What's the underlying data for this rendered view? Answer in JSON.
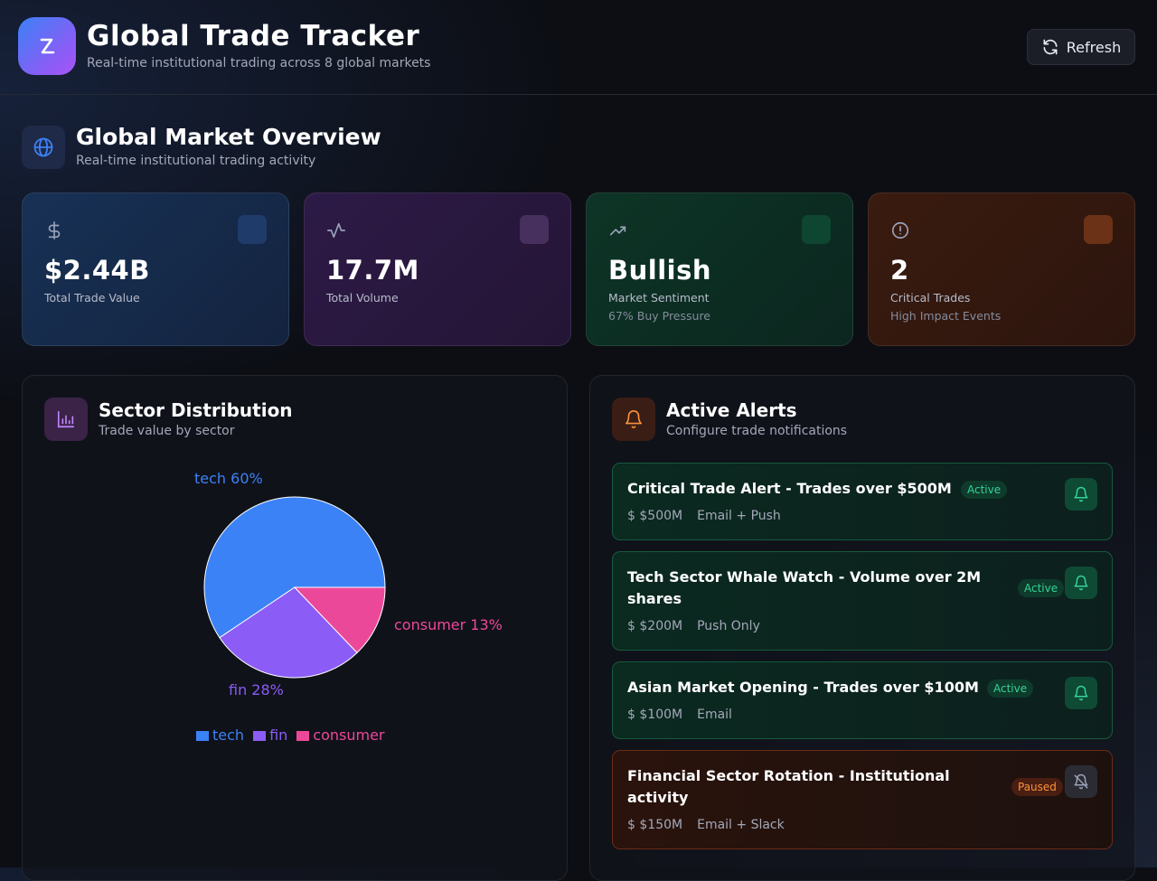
{
  "header": {
    "title": "Global Trade Tracker",
    "subtitle": "Real-time institutional trading across 8 global markets",
    "refresh_label": "Refresh"
  },
  "overview": {
    "title": "Global Market Overview",
    "subtitle": "Real-time institutional trading activity",
    "icon": "globe-icon"
  },
  "stats": [
    {
      "value": "$2.44B",
      "label": "Total Trade Value",
      "sub": "",
      "icon": "dollar-icon",
      "color": "#3b82f6"
    },
    {
      "value": "17.7M",
      "label": "Total Volume",
      "sub": "",
      "icon": "activity-icon",
      "color": "#a855f7"
    },
    {
      "value": "Bullish",
      "label": "Market Sentiment",
      "sub": "67% Buy Pressure",
      "icon": "trending-up-icon",
      "color": "#10b981"
    },
    {
      "value": "2",
      "label": "Critical Trades",
      "sub": "High Impact Events",
      "icon": "alert-circle-icon",
      "color": "#f97316"
    }
  ],
  "sector": {
    "title": "Sector Distribution",
    "subtitle": "Trade value by sector"
  },
  "chart_data": {
    "type": "pie",
    "categories": [
      "tech",
      "fin",
      "consumer"
    ],
    "values": [
      60,
      28,
      13
    ],
    "slice_labels": [
      "tech 60%",
      "fin 28%",
      "consumer 13%"
    ],
    "colors": [
      "#3b82f6",
      "#8b5cf6",
      "#ec4899"
    ],
    "legend": [
      "tech",
      "fin",
      "consumer"
    ],
    "legend_position": "bottom"
  },
  "alerts_panel": {
    "title": "Active Alerts",
    "subtitle": "Configure trade notifications"
  },
  "alerts": [
    {
      "title": "Critical Trade Alert - Trades over $500M",
      "status": "Active",
      "amount": "$500M",
      "channel": "Email + Push",
      "currency_symbol": "$"
    },
    {
      "title_line1": "Tech Sector Whale Watch - Volume over 2M",
      "title_line2": "shares",
      "status": "Active",
      "amount": "$200M",
      "channel": "Push Only",
      "currency_symbol": "$"
    },
    {
      "title": "Asian Market Opening - Trades over $100M",
      "status": "Active",
      "amount": "$100M",
      "channel": "Email",
      "currency_symbol": "$"
    },
    {
      "title_line1": "Financial Sector Rotation - Institutional",
      "title_line2": "activity",
      "status": "Paused",
      "amount": "$150M",
      "channel": "Email + Slack",
      "currency_symbol": "$"
    }
  ]
}
